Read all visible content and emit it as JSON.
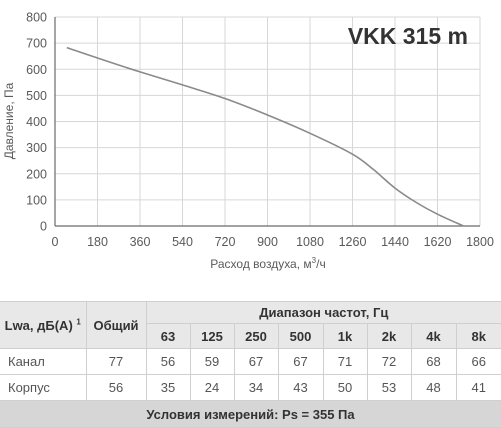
{
  "chart_data": {
    "type": "line",
    "title": "VKK 315 m",
    "xlabel": "Расход воздуха, м³/ч",
    "ylabel": "Давление, Па",
    "xlim": [
      0,
      1800
    ],
    "ylim": [
      0,
      800
    ],
    "x_ticks": [
      0,
      180,
      360,
      540,
      720,
      900,
      1080,
      1260,
      1440,
      1620,
      1800
    ],
    "y_ticks": [
      0,
      100,
      200,
      300,
      400,
      500,
      600,
      700,
      800
    ],
    "grid": true,
    "series": [
      {
        "color": "#8a8a8a",
        "points": [
          [
            50,
            683
          ],
          [
            180,
            643
          ],
          [
            360,
            590
          ],
          [
            540,
            540
          ],
          [
            720,
            488
          ],
          [
            900,
            425
          ],
          [
            1080,
            355
          ],
          [
            1260,
            275
          ],
          [
            1350,
            215
          ],
          [
            1440,
            145
          ],
          [
            1530,
            90
          ],
          [
            1620,
            45
          ],
          [
            1730,
            0
          ]
        ]
      }
    ]
  },
  "table": {
    "lwa_label": "Lwa, дБ(А)",
    "lwa_footnote": "1",
    "total_label": "Общий",
    "freq_range_label": "Диапазон частот, Гц",
    "frequencies": [
      "63",
      "125",
      "250",
      "500",
      "1k",
      "2k",
      "4k",
      "8k"
    ],
    "rows": [
      {
        "label": "Канал",
        "total": "77",
        "values": [
          "56",
          "59",
          "67",
          "67",
          "71",
          "72",
          "68",
          "66"
        ]
      },
      {
        "label": "Корпус",
        "total": "56",
        "values": [
          "35",
          "24",
          "34",
          "43",
          "50",
          "53",
          "48",
          "41"
        ]
      }
    ],
    "conditions": "Условия измерений: Ps = 355 Па"
  },
  "colors": {
    "grid": "#d7d7d7",
    "axis": "#6a6a6a",
    "header_bg": "#e8e8e8",
    "footer_bg": "#d6d6d6"
  }
}
